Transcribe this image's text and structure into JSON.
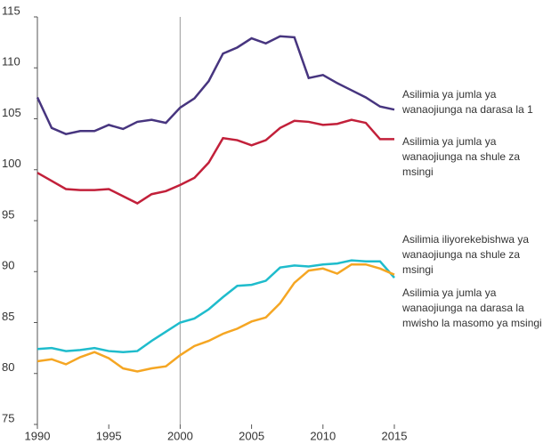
{
  "chart_data": {
    "type": "line",
    "x": [
      1990,
      1991,
      1992,
      1993,
      1994,
      1995,
      1996,
      1997,
      1998,
      1999,
      2000,
      2001,
      2002,
      2003,
      2004,
      2005,
      2006,
      2007,
      2008,
      2009,
      2010,
      2011,
      2012,
      2013,
      2014,
      2015
    ],
    "series": [
      {
        "name": "Asilimia ya jumla ya wanaojiunga na darasa la 1",
        "color": "#47357f",
        "values": [
          107.1,
          104.1,
          103.5,
          103.8,
          103.8,
          104.4,
          104.0,
          104.7,
          104.9,
          104.6,
          106.1,
          107.0,
          108.7,
          111.4,
          112.0,
          112.9,
          112.4,
          113.1,
          113.0,
          109.0,
          109.3,
          108.5,
          107.8,
          107.1,
          106.2,
          105.9
        ]
      },
      {
        "name": "Asilimia ya jumla ya wanaojiunga na shule za msingi",
        "color": "#c2203a",
        "values": [
          99.7,
          98.9,
          98.1,
          98.0,
          98.0,
          98.1,
          97.4,
          96.7,
          97.6,
          97.9,
          98.5,
          99.2,
          100.7,
          103.1,
          102.9,
          102.4,
          102.9,
          104.1,
          104.8,
          104.7,
          104.4,
          104.5,
          104.9,
          104.6,
          103.0,
          103.0
        ]
      },
      {
        "name": "Asilimia iliyorekebishwa ya wanaojiunga na shule za msingi",
        "color": "#1fbccc",
        "values": [
          82.4,
          82.5,
          82.2,
          82.3,
          82.5,
          82.2,
          82.1,
          82.2,
          83.2,
          84.1,
          85.0,
          85.4,
          86.3,
          87.5,
          88.6,
          88.7,
          89.1,
          90.4,
          90.6,
          90.5,
          90.7,
          90.8,
          91.1,
          91.0,
          91.0,
          89.4
        ]
      },
      {
        "name": "Asilimia ya jumla ya wanaojiunga na darasa la mwisho la masomo ya msingi",
        "color": "#f5a623",
        "values": [
          81.2,
          81.4,
          80.9,
          81.6,
          82.1,
          81.5,
          80.5,
          80.2,
          80.5,
          80.7,
          81.8,
          82.7,
          83.2,
          83.9,
          84.4,
          85.1,
          85.5,
          86.9,
          88.9,
          90.1,
          90.3,
          89.8,
          90.7,
          90.7,
          90.3,
          89.7
        ]
      }
    ],
    "xlim": [
      1990,
      2015
    ],
    "xticks": [
      1990,
      1995,
      2000,
      2005,
      2010,
      2015
    ],
    "ylim": [
      75,
      115
    ],
    "yticks": [
      75,
      80,
      85,
      90,
      95,
      100,
      105,
      110,
      115
    ],
    "vline": 2000,
    "grid": false
  }
}
